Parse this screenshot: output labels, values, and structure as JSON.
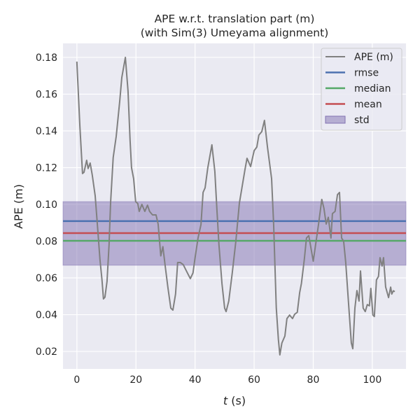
{
  "chart_data": {
    "type": "line",
    "title": "APE w.r.t. translation part (m)",
    "subtitle": "(with Sim(3) Umeyama alignment)",
    "xlabel_var": "t",
    "xlabel_unit": " (s)",
    "ylabel": "APE (m)",
    "xlim": [
      -4.7,
      111.4
    ],
    "ylim": [
      0.0105,
      0.1876
    ],
    "xticks": [
      0,
      20,
      40,
      60,
      80,
      100
    ],
    "yticks": [
      0.02,
      0.04,
      0.06,
      0.08,
      0.1,
      0.12,
      0.14,
      0.16,
      0.18
    ],
    "grid": true,
    "legend_position": "top-right",
    "colors": {
      "ape": "#808080",
      "rmse": "#4c72b0",
      "median": "#55a868",
      "mean": "#c44e52",
      "std": "#8172b2",
      "bg": "#eaeaf2"
    },
    "legend": [
      "APE (m)",
      "rmse",
      "median",
      "mean",
      "std"
    ],
    "stats": {
      "rmse": 0.0909,
      "median": 0.0802,
      "mean": 0.0844,
      "std_low": 0.0669,
      "std_high": 0.1015
    },
    "series": [
      {
        "name": "APE (m)",
        "x": [
          0,
          1,
          1.9,
          2.4,
          3.3,
          3.8,
          4.5,
          5.2,
          6.2,
          7.1,
          7.8,
          8.5,
          9.0,
          9.5,
          10.2,
          10.9,
          11.4,
          12.3,
          13.3,
          14.5,
          15.2,
          16.4,
          17.3,
          18.0,
          18.5,
          19.2,
          19.9,
          20.6,
          21.1,
          22.0,
          23.0,
          23.9,
          24.6,
          25.6,
          26.8,
          27.5,
          28.4,
          29.1,
          29.9,
          30.8,
          31.8,
          32.5,
          33.4,
          34.1,
          35.0,
          36.0,
          37.2,
          38.4,
          39.3,
          40.0,
          41.0,
          42.0,
          42.7,
          43.4,
          44.3,
          45.7,
          46.7,
          47.4,
          48.1,
          49.1,
          50.0,
          50.5,
          51.4,
          52.6,
          53.8,
          55.0,
          56.2,
          56.9,
          57.6,
          58.8,
          60.0,
          60.9,
          61.6,
          62.6,
          63.5,
          64.5,
          65.9,
          66.6,
          67.5,
          68.2,
          68.7,
          69.4,
          70.4,
          71.1,
          72.0,
          73.0,
          73.7,
          74.6,
          75.4,
          76.0,
          77.0,
          77.7,
          78.5,
          80.0,
          81.8,
          82.9,
          83.6,
          84.4,
          85.1,
          86.0,
          86.5,
          87.4,
          88.2,
          88.9,
          89.6,
          90.3,
          91.0,
          91.9,
          92.9,
          93.4,
          94.1,
          94.8,
          95.5,
          96.0,
          96.9,
          97.6,
          98.3,
          99.0,
          99.5,
          100.2,
          100.7,
          101.4,
          102.1,
          102.6,
          103.3,
          103.8,
          104.5,
          105.5,
          106.2,
          106.6,
          107.1,
          107.6
        ],
        "y": [
          0.1777,
          0.1427,
          0.1168,
          0.1175,
          0.124,
          0.1195,
          0.1225,
          0.116,
          0.1046,
          0.0855,
          0.07,
          0.0589,
          0.0486,
          0.0495,
          0.0581,
          0.078,
          0.101,
          0.1255,
          0.137,
          0.156,
          0.169,
          0.18,
          0.1617,
          0.135,
          0.12,
          0.114,
          0.1015,
          0.1005,
          0.0962,
          0.1,
          0.0962,
          0.0996,
          0.0962,
          0.0943,
          0.0943,
          0.0893,
          0.072,
          0.077,
          0.0665,
          0.055,
          0.0436,
          0.0425,
          0.0512,
          0.0684,
          0.0684,
          0.0672,
          0.0634,
          0.0596,
          0.0627,
          0.071,
          0.0817,
          0.089,
          0.1065,
          0.109,
          0.1198,
          0.1324,
          0.118,
          0.097,
          0.078,
          0.0569,
          0.0436,
          0.0417,
          0.0474,
          0.0627,
          0.0798,
          0.1008,
          0.1122,
          0.119,
          0.1251,
          0.1206,
          0.1293,
          0.1312,
          0.1377,
          0.1396,
          0.1457,
          0.1312,
          0.114,
          0.0893,
          0.0436,
          0.0265,
          0.0181,
          0.0246,
          0.0284,
          0.0379,
          0.0398,
          0.0379,
          0.0402,
          0.0413,
          0.052,
          0.057,
          0.0703,
          0.0817,
          0.083,
          0.0691,
          0.0893,
          0.1027,
          0.098,
          0.0893,
          0.093,
          0.0817,
          0.095,
          0.0962,
          0.1053,
          0.1065,
          0.0817,
          0.08,
          0.0684,
          0.0474,
          0.0246,
          0.0215,
          0.0436,
          0.0531,
          0.0474,
          0.0638,
          0.0436,
          0.0417,
          0.0455,
          0.0448,
          0.0543,
          0.0398,
          0.039,
          0.0589,
          0.0608,
          0.071,
          0.0665,
          0.071,
          0.0551,
          0.0493,
          0.055,
          0.0512,
          0.053,
          0.0525
        ]
      }
    ]
  }
}
